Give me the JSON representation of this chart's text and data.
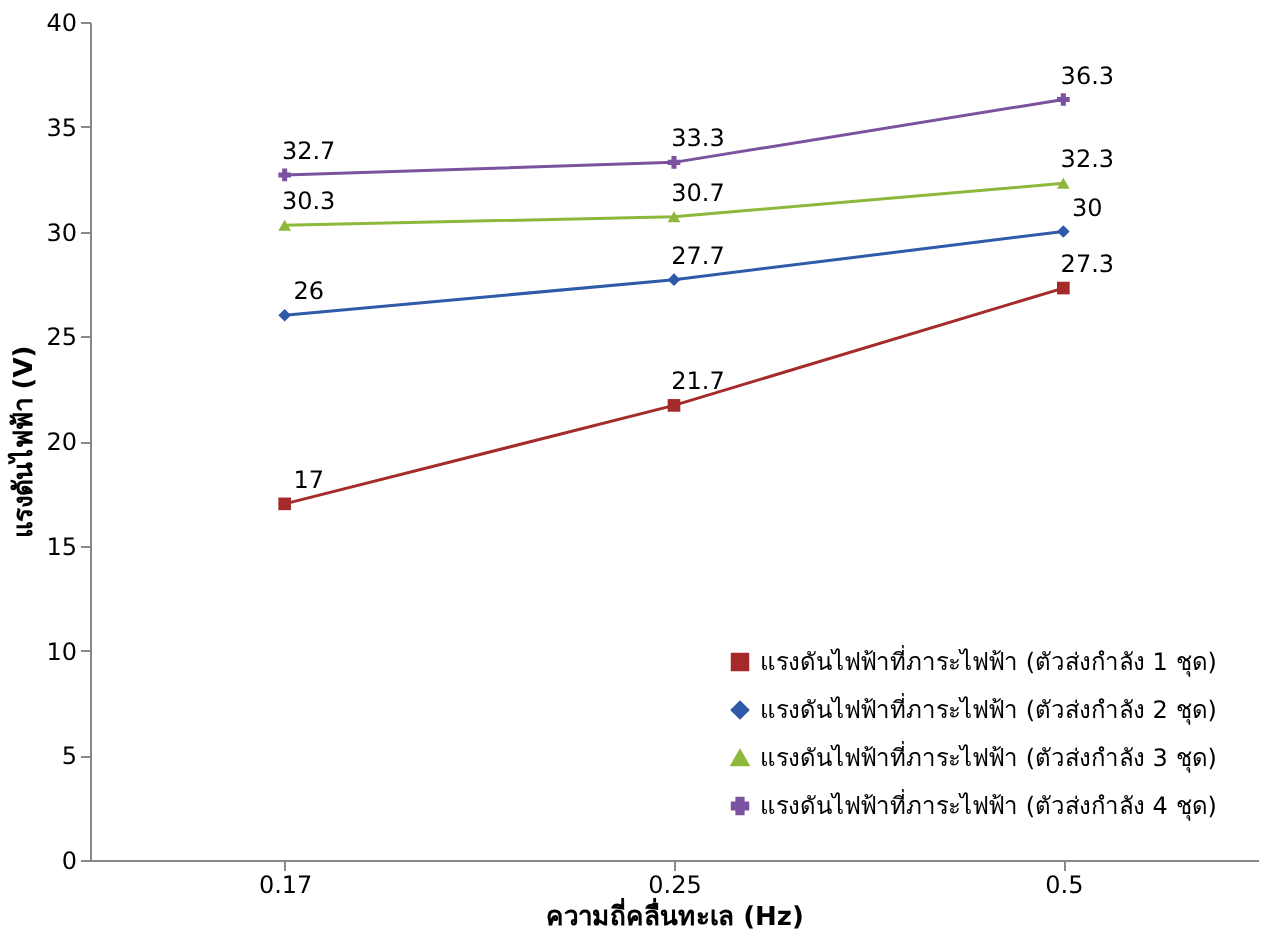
{
  "chart_data": {
    "type": "line",
    "xlabel": "ความถี่คลื่นทะเล (Hz)",
    "ylabel": "แรงดันไฟฟ้า (V)",
    "categories": [
      "0.17",
      "0.25",
      "0.5"
    ],
    "series": [
      {
        "name": "แรงดันไฟฟ้าที่ภาระไฟฟ้า (ตัวส่งกำลัง 1 ชุด)",
        "color": "#a52a2a",
        "marker": "square",
        "values": [
          17,
          21.7,
          27.3
        ]
      },
      {
        "name": "แรงดันไฟฟ้าที่ภาระไฟฟ้า (ตัวส่งกำลัง 2 ชุด)",
        "color": "#2e5aa8",
        "marker": "diamond",
        "values": [
          26,
          27.7,
          30
        ]
      },
      {
        "name": "แรงดันไฟฟ้าที่ภาระไฟฟ้า (ตัวส่งกำลัง 3 ชุด)",
        "color": "#8db83c",
        "marker": "triangle",
        "values": [
          30.3,
          30.7,
          32.3
        ]
      },
      {
        "name": "แรงดันไฟฟ้าที่ภาระไฟฟ้า (ตัวส่งกำลัง 4 ชุด)",
        "color": "#7a52a0",
        "marker": "cross",
        "values": [
          32.7,
          33.3,
          36.3
        ]
      }
    ],
    "ylim": [
      0,
      40
    ],
    "yticks": [
      0,
      5,
      10,
      15,
      20,
      25,
      30,
      35,
      40
    ],
    "grid": false,
    "legend": "bottom right",
    "data_labels": true,
    "line_style": "solid"
  }
}
